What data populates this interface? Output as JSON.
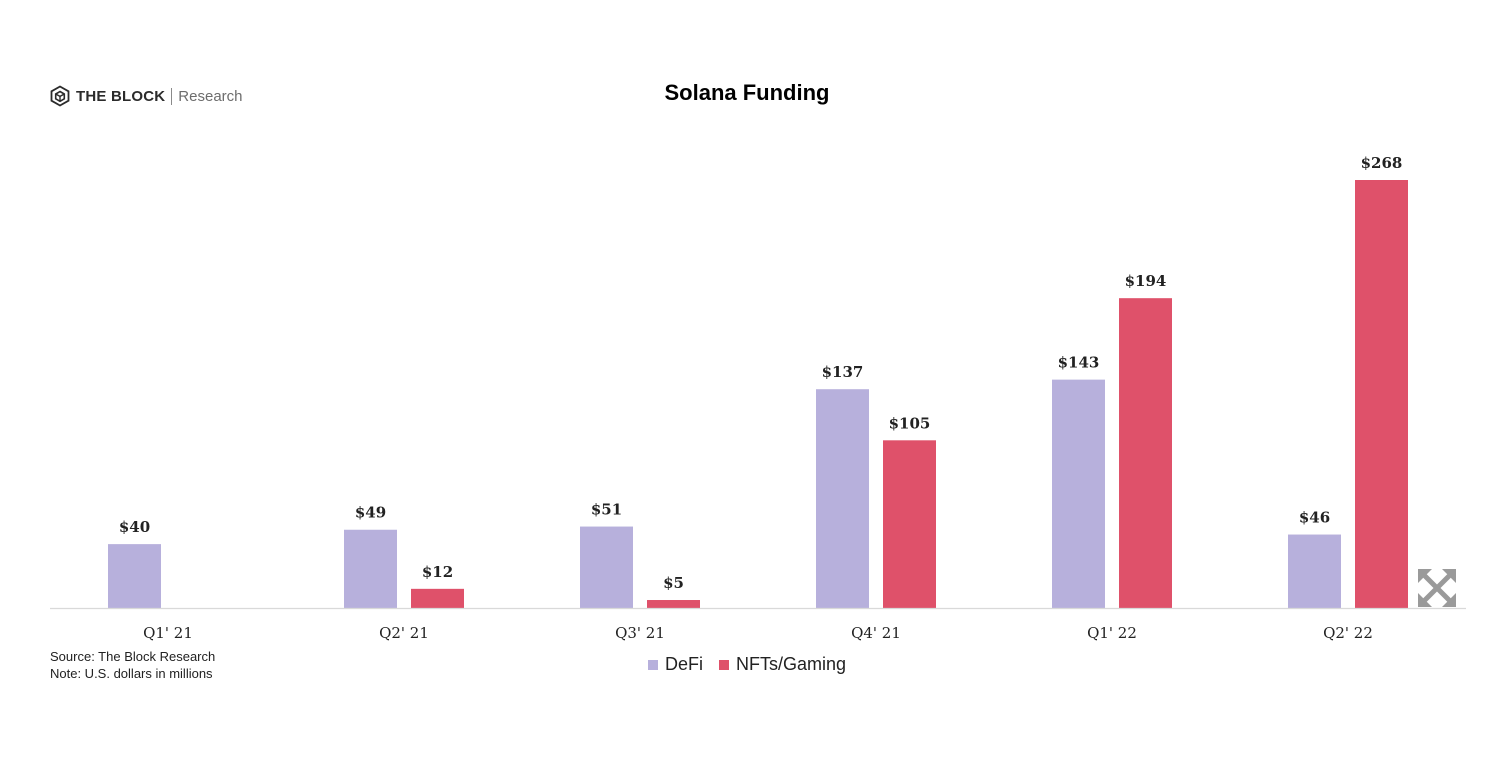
{
  "logo": {
    "brand": "THE BLOCK",
    "sub": "Research",
    "icon": "cube-hexagon-icon"
  },
  "chart_data": {
    "type": "bar",
    "title": "Solana Funding",
    "categories": [
      "Q1' 21",
      "Q2' 21",
      "Q3' 21",
      "Q4' 21",
      "Q1' 22",
      "Q2' 22"
    ],
    "series": [
      {
        "name": "DeFi",
        "color": "#b7b0dc",
        "values": [
          40,
          49,
          51,
          137,
          143,
          46
        ],
        "labels": [
          "$40",
          "$49",
          "$51",
          "$137",
          "$143",
          "$46"
        ]
      },
      {
        "name": "NFTs/Gaming",
        "color": "#df516a",
        "values": [
          null,
          12,
          5,
          105,
          194,
          268
        ],
        "labels": [
          "",
          "$12",
          "$5",
          "$105",
          "$194",
          "$268"
        ]
      }
    ],
    "ylim": [
      0,
      268
    ],
    "grid": false,
    "legend_position": "bottom-center"
  },
  "notes": {
    "source": "Source: The Block Research",
    "note": "Note: U.S. dollars in millions"
  },
  "expand_icon": "expand-arrows-icon"
}
